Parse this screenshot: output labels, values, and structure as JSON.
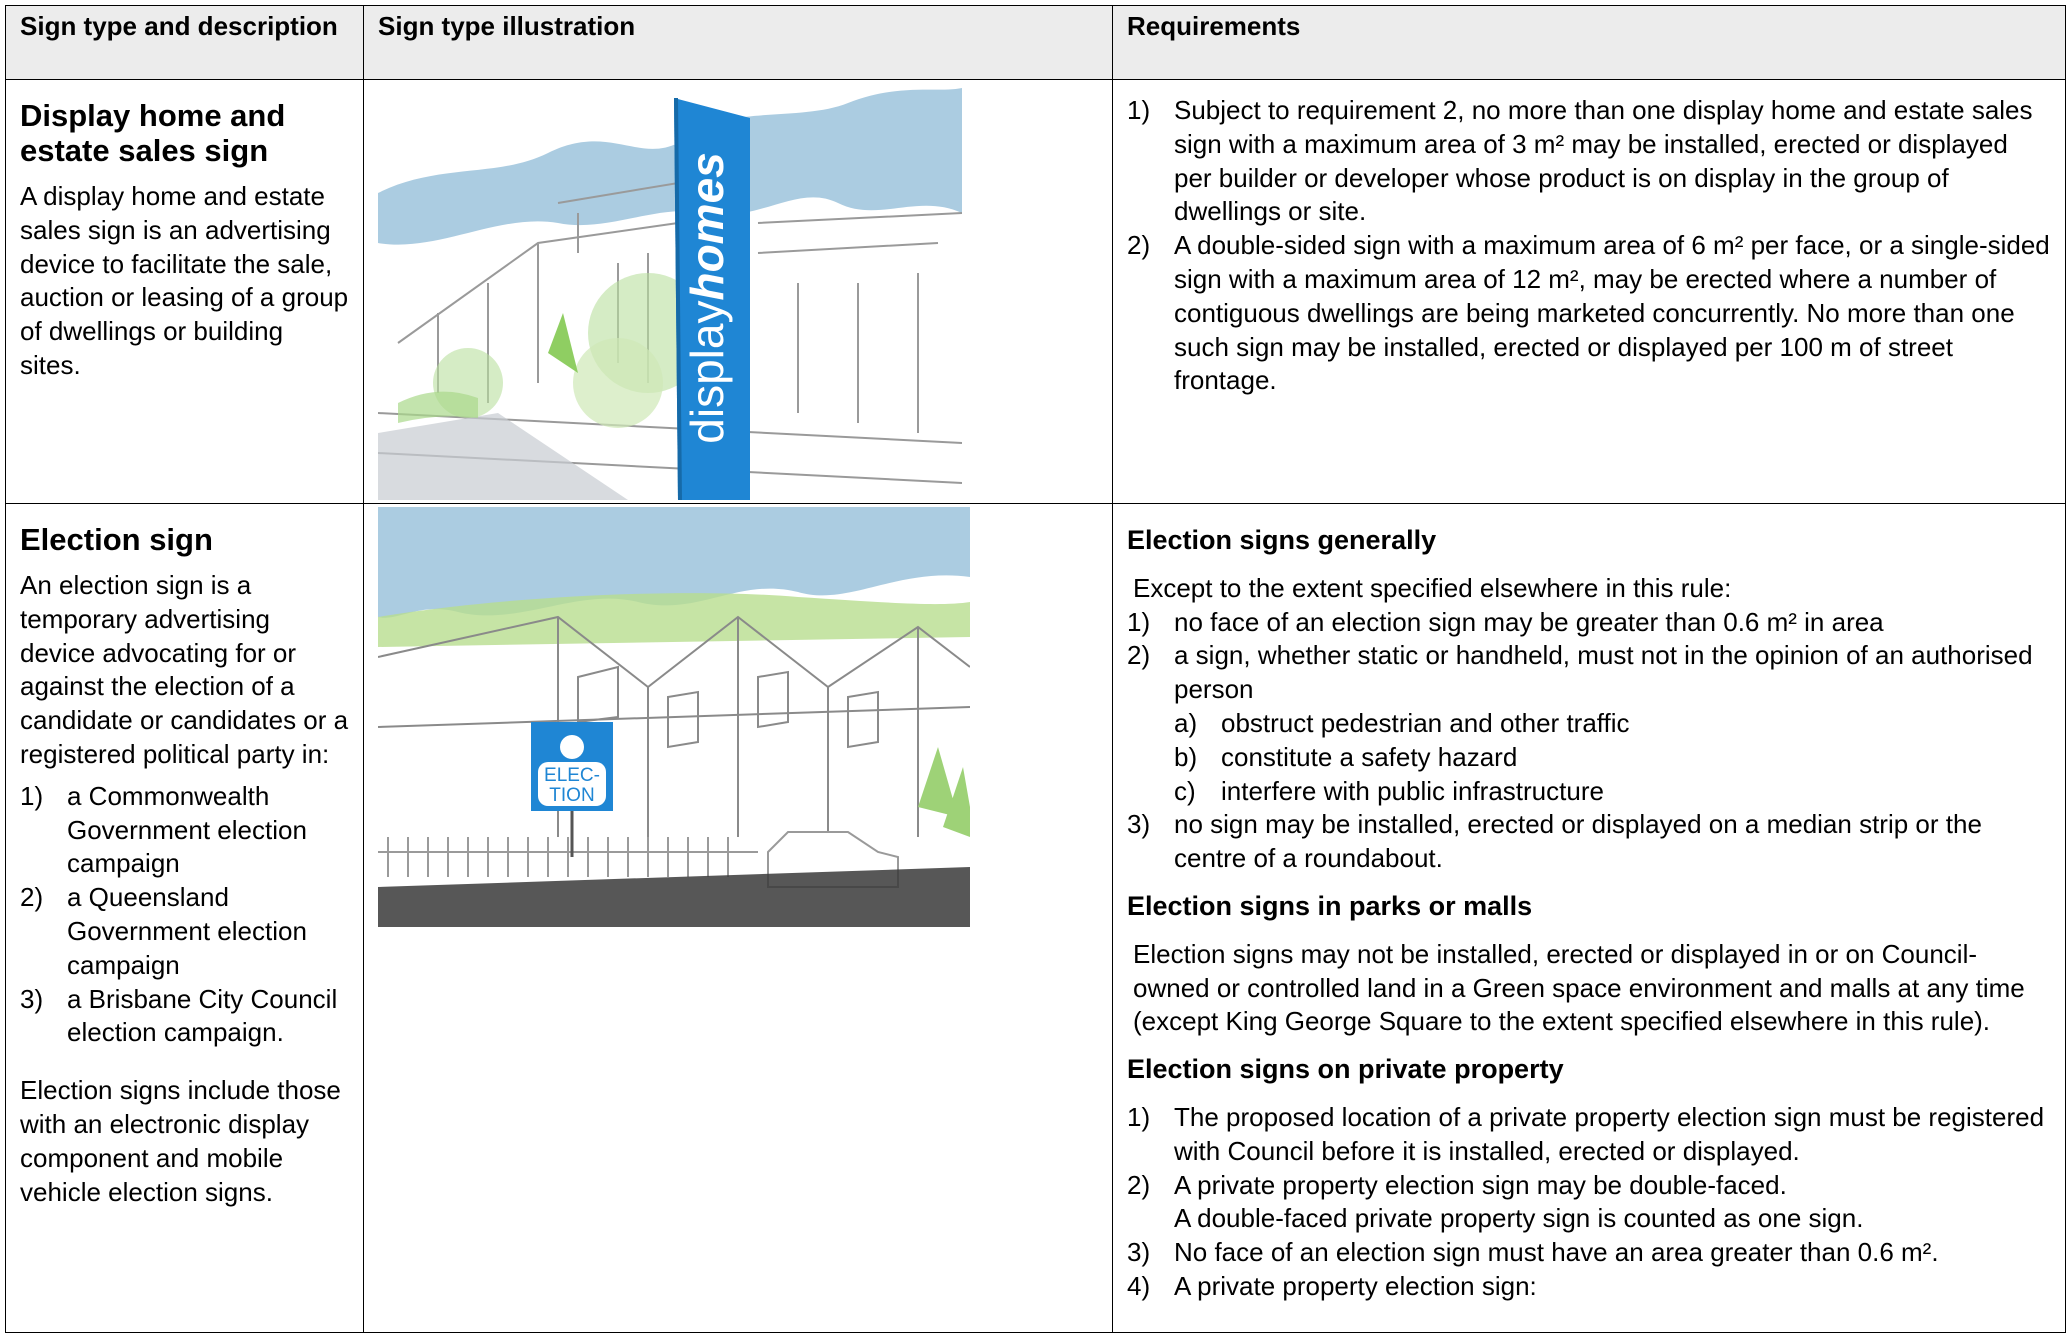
{
  "table": {
    "headers": [
      "Sign type and description",
      "Sign type illustration",
      "Requirements"
    ],
    "rows": [
      {
        "title": "Display home and estate sales sign",
        "description": [
          "A display home and estate sales sign is an advertising device to facilitate the sale, auction or leasing of a group of dwellings or building sites."
        ],
        "illustration_text": [
          "display",
          "homes"
        ],
        "requirements": [
          {
            "items": [
              {
                "label": "1)",
                "text": "Subject to requirement 2, no more than one display home and estate sales sign with a maximum area of 3 m² may be installed, erected or displayed per builder or developer whose product is on display in the group of dwellings or site."
              },
              {
                "label": "2)",
                "text": "A double-sided sign with a maximum area of 6 m² per face, or a single-sided sign with a maximum area of 12 m², may be erected where a number of contiguous dwellings are being marketed concurrently. No more than one such sign may be installed, erected or displayed per 100 m of street frontage."
              }
            ]
          }
        ]
      },
      {
        "title": "Election sign",
        "description": [
          "An election sign is a temporary advertising device advocating for or against the election of a candidate or candidates or a registered political party in:"
        ],
        "description_items": [
          {
            "label": "1)",
            "text": "a Commonwealth Government election campaign"
          },
          {
            "label": "2)",
            "text": "a Queensland Government election campaign"
          },
          {
            "label": "3)",
            "text": "a Brisbane City Council election campaign."
          }
        ],
        "description_after": [
          "Election signs include those with an electronic display component and mobile vehicle election signs."
        ],
        "illustration_text": [
          "ELEC-",
          "TION"
        ],
        "requirements": [
          {
            "heading": "Election signs generally",
            "intro": "Except to the extent specified elsewhere in this rule:",
            "items": [
              {
                "label": "1)",
                "text": "no face of an election sign may be greater than 0.6 m² in area"
              },
              {
                "label": "2)",
                "text": "a sign, whether static or handheld, must not in the opinion of an authorised person",
                "subitems": [
                  {
                    "label": "a)",
                    "text": "obstruct pedestrian and other traffic"
                  },
                  {
                    "label": "b)",
                    "text": "constitute a safety hazard"
                  },
                  {
                    "label": "c)",
                    "text": "interfere with public infrastructure"
                  }
                ]
              },
              {
                "label": "3)",
                "text": "no sign may be installed, erected or displayed on a median strip or the centre of a roundabout."
              }
            ]
          },
          {
            "heading": "Election signs in parks or malls",
            "intro": "Election signs may not be installed, erected or displayed in or on Council-owned or controlled land in a Green space environment and malls at any time (except King George Square to the extent specified elsewhere in this rule)."
          },
          {
            "heading": "Election signs on private property",
            "items": [
              {
                "label": "1)",
                "text": "The proposed location of a private property election sign must be registered with Council before it is installed, erected or displayed."
              },
              {
                "label": "2)",
                "text": "A private property election sign may be double-faced.",
                "note": "A double-faced private property sign is counted as one sign."
              },
              {
                "label": "3)",
                "text": "No face of an election sign must have an area greater than 0.6 m²."
              },
              {
                "label": "4)",
                "text": "A private property election sign:"
              }
            ]
          }
        ]
      }
    ]
  }
}
